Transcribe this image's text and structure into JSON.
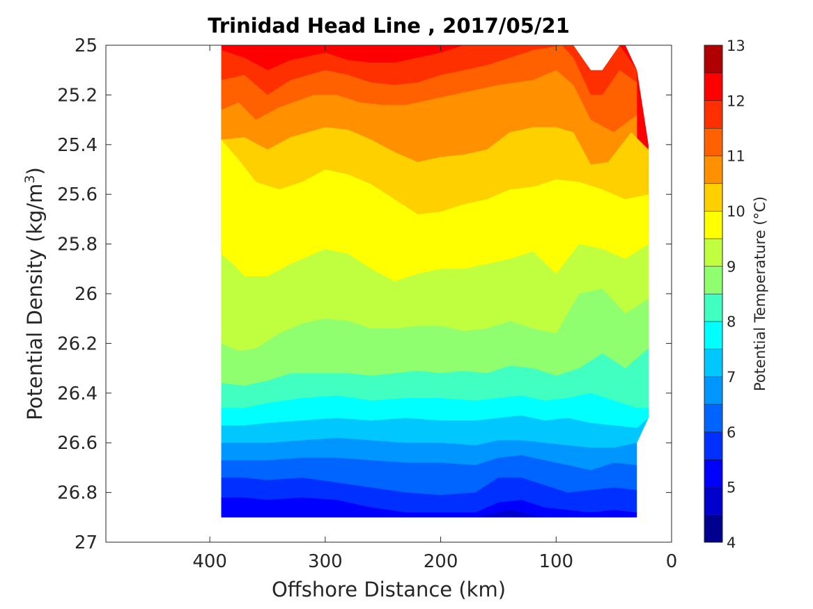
{
  "chart_data": {
    "type": "contour",
    "title": "Trinidad Head Line , 2017/05/21",
    "xlabel": "Offshore Distance (km)",
    "ylabel_text": "Potential Density (kg/m",
    "ylabel_sup": "3",
    "ylabel_close": ")",
    "colorbar_label": "Potential Temperature (°C)",
    "xlim": [
      490,
      0
    ],
    "ylim": [
      25,
      27
    ],
    "x_reversed": true,
    "y_reversed": true,
    "x_ticks": [
      "400",
      "300",
      "200",
      "100",
      "0"
    ],
    "y_ticks": [
      "25",
      "25.2",
      "25.4",
      "25.6",
      "25.8",
      "26",
      "26.2",
      "26.4",
      "26.6",
      "26.8",
      "27"
    ],
    "colorbar_ticks": [
      "4",
      "5",
      "6",
      "7",
      "8",
      "9",
      "10",
      "11",
      "12",
      "13"
    ],
    "levels": [
      4,
      4.5,
      5,
      5.5,
      6,
      6.5,
      7,
      7.5,
      8,
      8.5,
      9,
      9.5,
      10,
      10.5,
      11,
      11.5,
      12,
      12.5,
      13
    ],
    "colormap": [
      "#00008f",
      "#0000cd",
      "#0000ff",
      "#0030ff",
      "#0064ff",
      "#0096ff",
      "#00c8ff",
      "#00ffff",
      "#40ffc0",
      "#8fff70",
      "#bfff40",
      "#ffff00",
      "#ffd000",
      "#ff9000",
      "#ff6000",
      "#ff3000",
      "#ff0000",
      "#b00000"
    ],
    "data_x_range": [
      390,
      20
    ],
    "contours": [
      {
        "level": 12.0,
        "points": [
          [
            390,
            25.02
          ],
          [
            370,
            25.05
          ],
          [
            350,
            25.1
          ],
          [
            330,
            25.06
          ],
          [
            300,
            25.03
          ],
          [
            280,
            25.06
          ],
          [
            260,
            25.07
          ],
          [
            240,
            25.07
          ],
          [
            220,
            25.05
          ],
          [
            200,
            25.03
          ],
          [
            180,
            25.0
          ],
          [
            160,
            25.0
          ],
          [
            120,
            25.0
          ],
          [
            95,
            25.0
          ],
          [
            85,
            25.0
          ],
          [
            70,
            25.1
          ],
          [
            60,
            25.1
          ],
          [
            45,
            25.0
          ],
          [
            30,
            25.1
          ]
        ]
      },
      {
        "level": 11.5,
        "points": [
          [
            390,
            25.14
          ],
          [
            370,
            25.12
          ],
          [
            350,
            25.2
          ],
          [
            330,
            25.14
          ],
          [
            300,
            25.1
          ],
          [
            280,
            25.12
          ],
          [
            260,
            25.15
          ],
          [
            240,
            25.16
          ],
          [
            220,
            25.15
          ],
          [
            200,
            25.12
          ],
          [
            180,
            25.1
          ],
          [
            160,
            25.08
          ],
          [
            140,
            25.05
          ],
          [
            120,
            25.02
          ],
          [
            95,
            25.0
          ],
          [
            85,
            25.05
          ],
          [
            70,
            25.2
          ],
          [
            60,
            25.2
          ],
          [
            45,
            25.1
          ],
          [
            30,
            25.15
          ]
        ]
      },
      {
        "level": 11.0,
        "points": [
          [
            390,
            25.26
          ],
          [
            375,
            25.23
          ],
          [
            360,
            25.3
          ],
          [
            340,
            25.25
          ],
          [
            310,
            25.2
          ],
          [
            290,
            25.2
          ],
          [
            270,
            25.23
          ],
          [
            250,
            25.24
          ],
          [
            230,
            25.24
          ],
          [
            210,
            25.22
          ],
          [
            190,
            25.2
          ],
          [
            170,
            25.18
          ],
          [
            150,
            25.16
          ],
          [
            120,
            25.14
          ],
          [
            100,
            25.1
          ],
          [
            85,
            25.16
          ],
          [
            70,
            25.3
          ],
          [
            50,
            25.35
          ],
          [
            30,
            25.28
          ]
        ]
      },
      {
        "level": 10.5,
        "points": [
          [
            390,
            25.38
          ],
          [
            370,
            25.37
          ],
          [
            350,
            25.42
          ],
          [
            330,
            25.37
          ],
          [
            300,
            25.33
          ],
          [
            280,
            25.34
          ],
          [
            260,
            25.38
          ],
          [
            240,
            25.43
          ],
          [
            220,
            25.47
          ],
          [
            200,
            25.45
          ],
          [
            180,
            25.44
          ],
          [
            160,
            25.42
          ],
          [
            140,
            25.35
          ],
          [
            120,
            25.33
          ],
          [
            100,
            25.33
          ],
          [
            85,
            25.35
          ],
          [
            70,
            25.48
          ],
          [
            55,
            25.47
          ],
          [
            35,
            25.35
          ],
          [
            20,
            25.42
          ]
        ]
      },
      {
        "level": 10.0,
        "points": [
          [
            390,
            25.38
          ],
          [
            375,
            25.46
          ],
          [
            360,
            25.55
          ],
          [
            340,
            25.58
          ],
          [
            320,
            25.55
          ],
          [
            300,
            25.5
          ],
          [
            280,
            25.52
          ],
          [
            260,
            25.56
          ],
          [
            240,
            25.62
          ],
          [
            220,
            25.68
          ],
          [
            200,
            25.67
          ],
          [
            180,
            25.64
          ],
          [
            160,
            25.62
          ],
          [
            140,
            25.58
          ],
          [
            120,
            25.57
          ],
          [
            100,
            25.54
          ],
          [
            80,
            25.55
          ],
          [
            60,
            25.58
          ],
          [
            40,
            25.62
          ],
          [
            20,
            25.6
          ]
        ]
      },
      {
        "level": 9.5,
        "points": [
          [
            390,
            25.84
          ],
          [
            380,
            25.88
          ],
          [
            370,
            25.93
          ],
          [
            350,
            25.93
          ],
          [
            330,
            25.88
          ],
          [
            300,
            25.82
          ],
          [
            280,
            25.84
          ],
          [
            260,
            25.9
          ],
          [
            240,
            25.95
          ],
          [
            220,
            25.92
          ],
          [
            200,
            25.9
          ],
          [
            180,
            25.9
          ],
          [
            160,
            25.88
          ],
          [
            140,
            25.86
          ],
          [
            120,
            25.83
          ],
          [
            100,
            25.92
          ],
          [
            80,
            25.8
          ],
          [
            60,
            25.82
          ],
          [
            40,
            25.86
          ],
          [
            20,
            25.8
          ]
        ]
      },
      {
        "level": 9.0,
        "points": [
          [
            390,
            26.2
          ],
          [
            375,
            26.23
          ],
          [
            360,
            26.22
          ],
          [
            340,
            26.16
          ],
          [
            320,
            26.12
          ],
          [
            300,
            26.1
          ],
          [
            280,
            26.11
          ],
          [
            260,
            26.14
          ],
          [
            240,
            26.14
          ],
          [
            220,
            26.13
          ],
          [
            200,
            26.13
          ],
          [
            180,
            26.15
          ],
          [
            160,
            26.14
          ],
          [
            140,
            26.11
          ],
          [
            120,
            26.14
          ],
          [
            100,
            26.16
          ],
          [
            80,
            26.0
          ],
          [
            60,
            25.98
          ],
          [
            40,
            26.08
          ],
          [
            20,
            26.02
          ]
        ]
      },
      {
        "level": 8.5,
        "points": [
          [
            390,
            26.36
          ],
          [
            370,
            26.37
          ],
          [
            350,
            26.35
          ],
          [
            330,
            26.32
          ],
          [
            300,
            26.32
          ],
          [
            280,
            26.32
          ],
          [
            260,
            26.33
          ],
          [
            240,
            26.32
          ],
          [
            220,
            26.31
          ],
          [
            200,
            26.32
          ],
          [
            180,
            26.31
          ],
          [
            160,
            26.32
          ],
          [
            140,
            26.29
          ],
          [
            120,
            26.3
          ],
          [
            100,
            26.33
          ],
          [
            80,
            26.3
          ],
          [
            60,
            26.24
          ],
          [
            40,
            26.3
          ],
          [
            20,
            26.22
          ]
        ]
      },
      {
        "level": 8.0,
        "points": [
          [
            390,
            26.46
          ],
          [
            370,
            26.46
          ],
          [
            350,
            26.44
          ],
          [
            320,
            26.42
          ],
          [
            290,
            26.41
          ],
          [
            260,
            26.43
          ],
          [
            230,
            26.42
          ],
          [
            200,
            26.42
          ],
          [
            170,
            26.43
          ],
          [
            150,
            26.42
          ],
          [
            130,
            26.41
          ],
          [
            110,
            26.43
          ],
          [
            90,
            26.42
          ],
          [
            70,
            26.4
          ],
          [
            50,
            26.43
          ],
          [
            30,
            26.46
          ],
          [
            20,
            26.46
          ]
        ]
      },
      {
        "level": 7.5,
        "points": [
          [
            390,
            26.53
          ],
          [
            370,
            26.53
          ],
          [
            350,
            26.52
          ],
          [
            320,
            26.51
          ],
          [
            290,
            26.5
          ],
          [
            260,
            26.51
          ],
          [
            230,
            26.5
          ],
          [
            200,
            26.51
          ],
          [
            170,
            26.51
          ],
          [
            150,
            26.5
          ],
          [
            130,
            26.49
          ],
          [
            110,
            26.51
          ],
          [
            90,
            26.5
          ],
          [
            70,
            26.52
          ],
          [
            50,
            26.53
          ],
          [
            30,
            26.54
          ],
          [
            20,
            26.5
          ]
        ]
      },
      {
        "level": 7.0,
        "points": [
          [
            390,
            26.6
          ],
          [
            370,
            26.6
          ],
          [
            350,
            26.6
          ],
          [
            320,
            26.59
          ],
          [
            290,
            26.58
          ],
          [
            260,
            26.59
          ],
          [
            230,
            26.6
          ],
          [
            200,
            26.6
          ],
          [
            170,
            26.61
          ],
          [
            150,
            26.59
          ],
          [
            130,
            26.59
          ],
          [
            110,
            26.6
          ],
          [
            90,
            26.61
          ],
          [
            70,
            26.62
          ],
          [
            50,
            26.62
          ],
          [
            30,
            26.6
          ]
        ]
      },
      {
        "level": 6.5,
        "points": [
          [
            390,
            26.67
          ],
          [
            370,
            26.67
          ],
          [
            350,
            26.67
          ],
          [
            320,
            26.66
          ],
          [
            290,
            26.66
          ],
          [
            260,
            26.67
          ],
          [
            230,
            26.68
          ],
          [
            200,
            26.68
          ],
          [
            170,
            26.69
          ],
          [
            150,
            26.66
          ],
          [
            130,
            26.65
          ],
          [
            110,
            26.67
          ],
          [
            90,
            26.69
          ],
          [
            70,
            26.71
          ],
          [
            50,
            26.68
          ],
          [
            30,
            26.69
          ]
        ]
      },
      {
        "level": 6.0,
        "points": [
          [
            390,
            26.74
          ],
          [
            370,
            26.74
          ],
          [
            350,
            26.75
          ],
          [
            320,
            26.74
          ],
          [
            290,
            26.76
          ],
          [
            260,
            26.78
          ],
          [
            230,
            26.8
          ],
          [
            200,
            26.81
          ],
          [
            170,
            26.8
          ],
          [
            150,
            26.74
          ],
          [
            130,
            26.74
          ],
          [
            110,
            26.77
          ],
          [
            90,
            26.8
          ],
          [
            70,
            26.79
          ],
          [
            50,
            26.78
          ],
          [
            30,
            26.79
          ]
        ]
      },
      {
        "level": 5.5,
        "points": [
          [
            390,
            26.82
          ],
          [
            370,
            26.82
          ],
          [
            350,
            26.83
          ],
          [
            320,
            26.82
          ],
          [
            290,
            26.83
          ],
          [
            260,
            26.86
          ],
          [
            230,
            26.88
          ],
          [
            200,
            26.88
          ],
          [
            170,
            26.88
          ],
          [
            150,
            26.84
          ],
          [
            130,
            26.83
          ],
          [
            110,
            26.86
          ],
          [
            90,
            26.87
          ],
          [
            70,
            26.88
          ],
          [
            50,
            26.87
          ],
          [
            30,
            26.88
          ]
        ]
      },
      {
        "level": 5.0,
        "points": [
          [
            390,
            26.9
          ],
          [
            370,
            26.9
          ],
          [
            350,
            26.9
          ],
          [
            320,
            26.9
          ],
          [
            290,
            26.9
          ],
          [
            260,
            26.9
          ],
          [
            230,
            26.9
          ],
          [
            200,
            26.9
          ],
          [
            170,
            26.9
          ],
          [
            150,
            26.88
          ],
          [
            140,
            26.87
          ],
          [
            130,
            26.88
          ],
          [
            110,
            26.9
          ],
          [
            90,
            26.9
          ],
          [
            70,
            26.9
          ],
          [
            50,
            26.9
          ],
          [
            30,
            26.9
          ]
        ]
      }
    ]
  }
}
